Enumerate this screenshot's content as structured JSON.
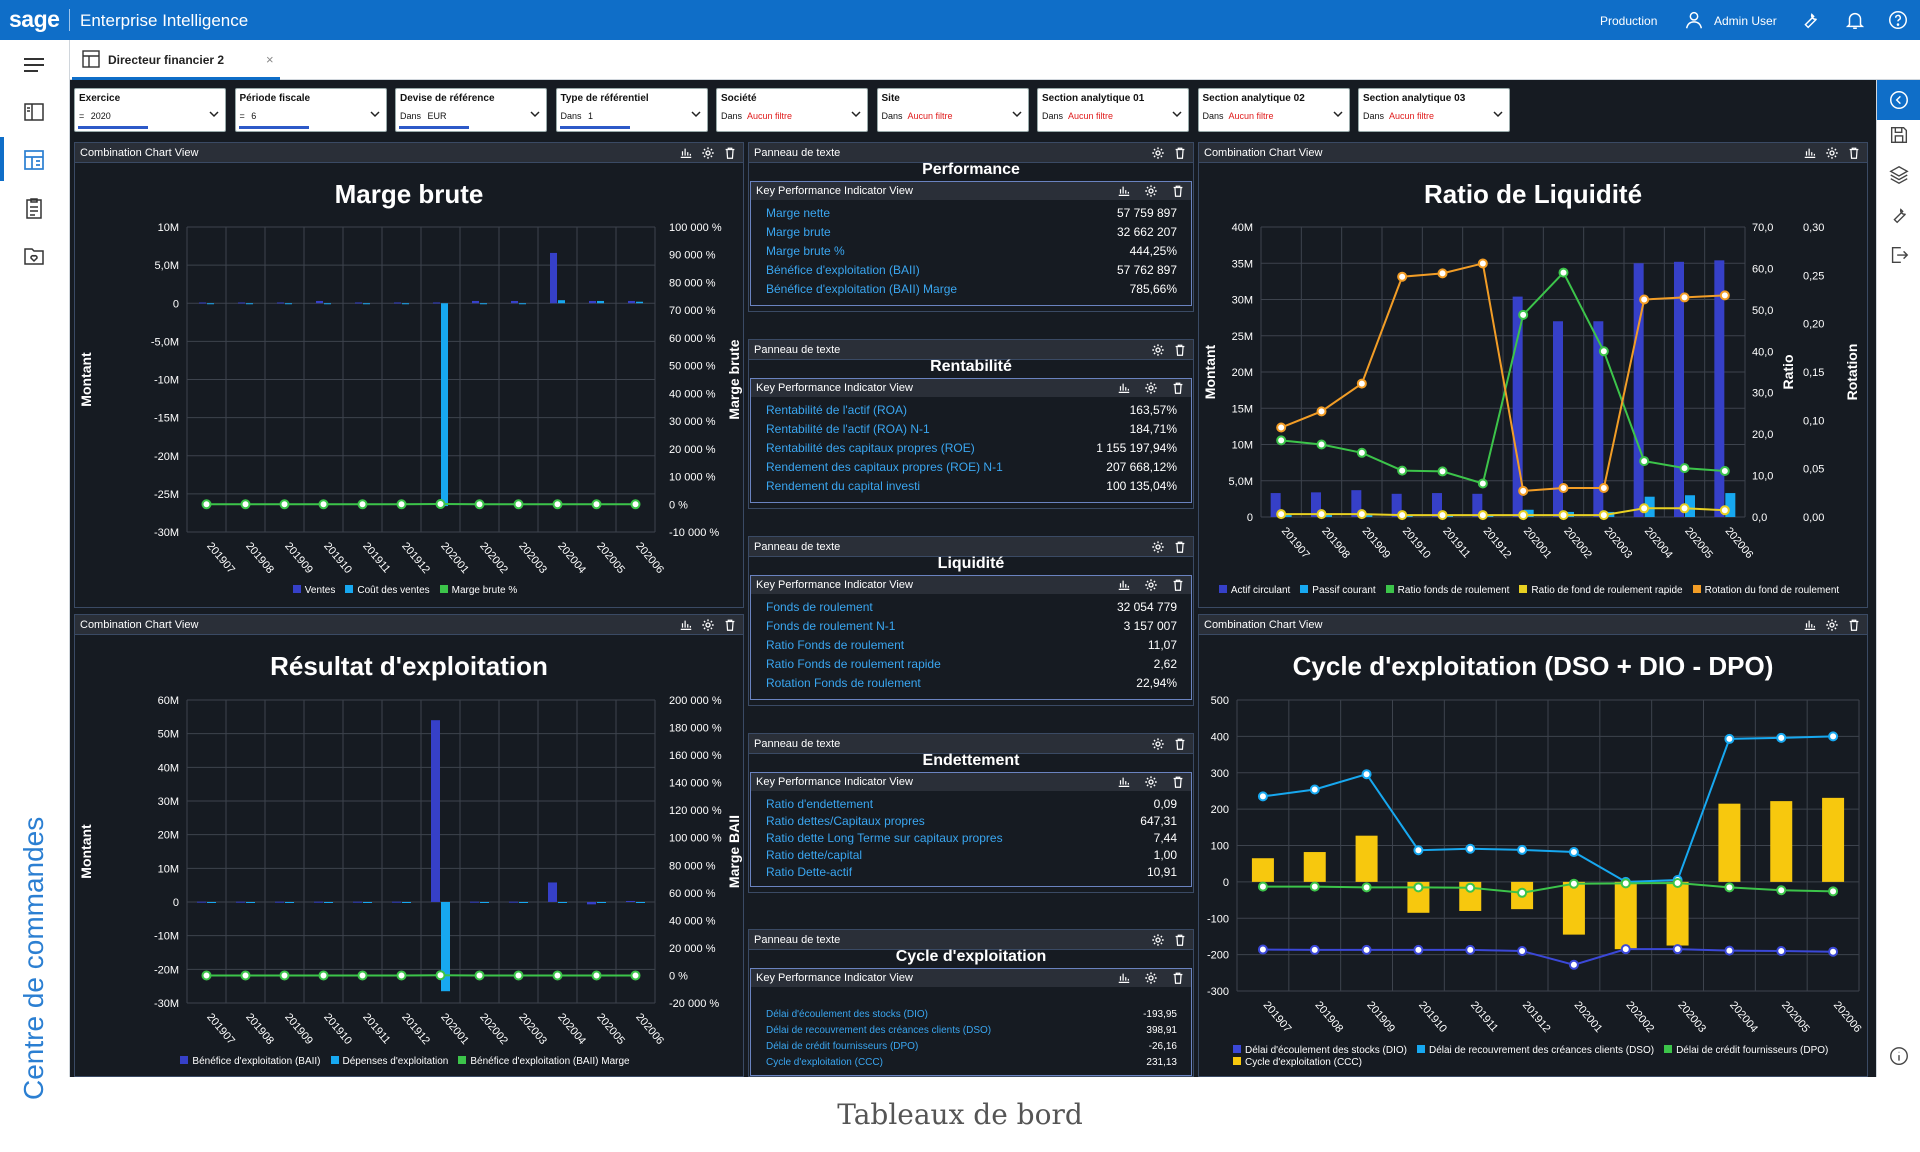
{
  "topbar": {
    "logo": "sage",
    "app_name": "Enterprise Intelligence",
    "environment": "Production",
    "user": "Admin User"
  },
  "tab": {
    "label": "Directeur financier 2",
    "close": "×"
  },
  "side_label": "Centre de commandes",
  "caption": "Tableaux de bord",
  "filters": [
    {
      "label": "Exercice",
      "prefix": "=",
      "value": "2020",
      "filtered": false
    },
    {
      "label": "Période fiscale",
      "prefix": "=",
      "value": "6",
      "filtered": false
    },
    {
      "label": "Devise de référence",
      "prefix": "Dans",
      "value": "EUR",
      "filtered": false
    },
    {
      "label": "Type de référentiel",
      "prefix": "Dans",
      "value": "1",
      "filtered": false
    },
    {
      "label": "Société",
      "prefix": "Dans",
      "value": "Aucun filtre",
      "filtered": true
    },
    {
      "label": "Site",
      "prefix": "Dans",
      "value": "Aucun filtre",
      "filtered": true
    },
    {
      "label": "Section analytique 01",
      "prefix": "Dans",
      "value": "Aucun filtre",
      "filtered": true
    },
    {
      "label": "Section analytique 02",
      "prefix": "Dans",
      "value": "Aucun filtre",
      "filtered": true
    },
    {
      "label": "Section analytique 03",
      "prefix": "Dans",
      "value": "Aucun filtre",
      "filtered": true
    }
  ],
  "panel_titles": {
    "combo": "Combination Chart View",
    "text": "Panneau de texte",
    "kpi": "Key Performance Indicator View"
  },
  "kpi_sections": [
    {
      "title": "Performance",
      "rows": [
        {
          "label": "Marge nette",
          "value": "57 759 897"
        },
        {
          "label": "Marge brute",
          "value": "32 662 207"
        },
        {
          "label": "Marge brute %",
          "value": "444,25%"
        },
        {
          "label": "Bénéfice d'exploitation (BAII)",
          "value": "57 762 897"
        },
        {
          "label": "Bénéfice d'exploitation (BAII) Marge",
          "value": "785,66%"
        }
      ]
    },
    {
      "title": "Rentabilité",
      "rows": [
        {
          "label": "Rentabilité de l'actif (ROA)",
          "value": "163,57%"
        },
        {
          "label": "Rentabilité de l'actif (ROA) N-1",
          "value": "184,71%"
        },
        {
          "label": "Rentabilité des capitaux propres (ROE)",
          "value": "1 155 197,94%"
        },
        {
          "label": "Rendement des capitaux propres (ROE) N-1",
          "value": "207 668,12%"
        },
        {
          "label": "Rendement du capital investi",
          "value": "100 135,04%"
        }
      ]
    },
    {
      "title": "Liquidité",
      "rows": [
        {
          "label": "Fonds de roulement",
          "value": "32 054 779"
        },
        {
          "label": "Fonds de roulement N-1",
          "value": "3 157 007"
        },
        {
          "label": "Ratio Fonds de roulement",
          "value": "11,07"
        },
        {
          "label": "Ratio Fonds de roulement rapide",
          "value": "2,62"
        },
        {
          "label": "Rotation Fonds de roulement",
          "value": "22,94%"
        }
      ]
    },
    {
      "title": "Endettement",
      "rows": [
        {
          "label": "Ratio d'endettement",
          "value": "0,09"
        },
        {
          "label": "Ratio dettes/Capitaux propres",
          "value": "647,31"
        },
        {
          "label": "Ratio dette Long Terme sur capitaux propres",
          "value": "7,44"
        },
        {
          "label": "Ratio dette/capital",
          "value": "1,00"
        },
        {
          "label": "Ratio Dette-actif",
          "value": "10,91"
        }
      ]
    },
    {
      "title": "Cycle d'exploitation",
      "rows": [
        {
          "label": "Délai d'écoulement des stocks (DIO)",
          "value": "-193,95"
        },
        {
          "label": "Délai de recouvrement des créances clients (DSO)",
          "value": "398,91"
        },
        {
          "label": "Délai de crédit fournisseurs (DPO)",
          "value": "-26,16"
        },
        {
          "label": "Cycle d'exploitation (CCC)",
          "value": "231,13"
        }
      ]
    }
  ],
  "chart_data": [
    {
      "type": "bar",
      "title": "Marge brute",
      "ylabel": "Montant",
      "y2label": "Marge brute",
      "categories": [
        "201907",
        "201908",
        "201909",
        "201910",
        "201911",
        "201912",
        "202001",
        "202002",
        "202003",
        "202004",
        "202005",
        "202006"
      ],
      "yticks": [
        "10M",
        "5,0M",
        "0",
        "-5,0M",
        "-10M",
        "-15M",
        "-20M",
        "-25M",
        "-30M"
      ],
      "ylim": [
        -30000000,
        10000000
      ],
      "y2ticks": [
        "100 000 %",
        "90 000 %",
        "80 000 %",
        "70 000 %",
        "60 000 %",
        "50 000 %",
        "40 000 %",
        "30 000 %",
        "20 000 %",
        "10 000 %",
        "0 %",
        "-10 000 %"
      ],
      "y2lim": [
        -10000000,
        100000000
      ],
      "series": [
        {
          "name": "Ventes",
          "kind": "bar",
          "color": "#3640c8",
          "values": [
            100000,
            100000,
            100000,
            300000,
            100000,
            100000,
            100000,
            300000,
            300000,
            6600000,
            300000,
            300000
          ]
        },
        {
          "name": "Coût des ventes",
          "kind": "bar",
          "color": "#17a8f0",
          "values": [
            0,
            0,
            0,
            0,
            0,
            0,
            -26600000,
            0,
            0,
            400000,
            300000,
            200000
          ]
        },
        {
          "name": "Marge brute %",
          "kind": "line",
          "axis": "y2",
          "color": "#3cc44a",
          "values": [
            0,
            0,
            0,
            0,
            0,
            -1000,
            91000,
            -1000,
            -300,
            100,
            2000,
            200
          ]
        }
      ]
    },
    {
      "type": "bar",
      "title": "Résultat d'exploitation",
      "ylabel": "Montant",
      "y2label": "Marge BAII",
      "categories": [
        "201907",
        "201908",
        "201909",
        "201910",
        "201911",
        "201912",
        "202001",
        "202002",
        "202003",
        "202004",
        "202005",
        "202006"
      ],
      "yticks": [
        "60M",
        "50M",
        "40M",
        "30M",
        "20M",
        "10M",
        "0",
        "-10M",
        "-20M",
        "-30M"
      ],
      "ylim": [
        -30000000,
        60000000
      ],
      "y2ticks": [
        "200 000 %",
        "180 000 %",
        "160 000 %",
        "140 000 %",
        "120 000 %",
        "100 000 %",
        "80 000 %",
        "60 000 %",
        "40 000 %",
        "20 000 %",
        "0 %",
        "-20 000 %"
      ],
      "y2lim": [
        -20000000,
        200000000
      ],
      "series": [
        {
          "name": "Bénéfice d'exploitation (BAII)",
          "kind": "bar",
          "color": "#3640c8",
          "values": [
            100000,
            100000,
            100000,
            100000,
            100000,
            100000,
            54000000,
            100000,
            100000,
            5800000,
            -700000,
            300000
          ]
        },
        {
          "name": "Dépenses d'exploitation",
          "kind": "bar",
          "color": "#17a8f0",
          "values": [
            0,
            0,
            0,
            0,
            0,
            0,
            -26500000,
            0,
            0,
            0,
            0,
            0
          ]
        },
        {
          "name": "Bénéfice d'exploitation (BAII) Marge",
          "kind": "line",
          "axis": "y2",
          "color": "#3cc44a",
          "values": [
            0,
            0,
            0,
            0,
            0,
            -2000,
            182000,
            -2000,
            0,
            300,
            2000,
            200
          ]
        }
      ]
    },
    {
      "type": "bar",
      "title": "Ratio de Liquidité",
      "ylabel": "Montant",
      "y2label": "Ratio",
      "y3label": "Rotation",
      "categories": [
        "201907",
        "201908",
        "201909",
        "201910",
        "201911",
        "201912",
        "202001",
        "202002",
        "202003",
        "202004",
        "202005",
        "202006"
      ],
      "yticks": [
        "40M",
        "35M",
        "30M",
        "25M",
        "20M",
        "15M",
        "10M",
        "5,0M",
        "0"
      ],
      "ylim": [
        0,
        40000000
      ],
      "y2ticks": [
        "70,0",
        "60,0",
        "50,0",
        "40,0",
        "30,0",
        "20,0",
        "10,0",
        "0,0"
      ],
      "y2lim": [
        0,
        70
      ],
      "y3ticks": [
        "0,30",
        "0,25",
        "0,20",
        "0,15",
        "0,10",
        "0,05",
        "0,00"
      ],
      "y3lim": [
        0,
        0.3
      ],
      "series": [
        {
          "name": "Actif circulant",
          "kind": "bar",
          "color": "#3640c8",
          "values": [
            3300000,
            3400000,
            3700000,
            3200000,
            3300000,
            3200000,
            30400000,
            27000000,
            27000000,
            35000000,
            35200000,
            35400000
          ]
        },
        {
          "name": "Passif courant",
          "kind": "bar",
          "color": "#17a8f0",
          "values": [
            300000,
            300000,
            300000,
            300000,
            300000,
            300000,
            1000000,
            700000,
            700000,
            2800000,
            3000000,
            3300000
          ]
        },
        {
          "name": "Ratio fonds de roulement",
          "kind": "line",
          "axis": "y2",
          "color": "#3cc44a",
          "values": [
            18.5,
            17.5,
            15.5,
            11.2,
            11.0,
            8.1,
            48.8,
            59.0,
            40.0,
            13.5,
            11.8,
            11.1
          ]
        },
        {
          "name": "Ratio de fond de roulement rapide",
          "kind": "line",
          "axis": "y3",
          "color": "#e8d022",
          "values": [
            0.003,
            0.003,
            0.003,
            0.002,
            0.002,
            0.002,
            0.002,
            0.002,
            0.002,
            0.009,
            0.009,
            0.007
          ]
        },
        {
          "name": "Rotation du fond de roulement",
          "kind": "line",
          "axis": "y2",
          "color": "#f29d26",
          "values": [
            21.6,
            25.5,
            32.2,
            58.0,
            58.8,
            61.2,
            6.3,
            7.0,
            7.0,
            52.5,
            53.0,
            53.5
          ]
        }
      ]
    },
    {
      "type": "bar",
      "title": "Cycle d'exploitation (DSO + DIO - DPO)",
      "ylabel": "",
      "yticks": [
        "500",
        "400",
        "300",
        "200",
        "100",
        "0",
        "-100",
        "-200",
        "-300"
      ],
      "ylim": [
        -300,
        500
      ],
      "categories": [
        "201907",
        "201908",
        "201909",
        "201910",
        "201911",
        "201912",
        "202001",
        "202002",
        "202003",
        "202004",
        "202005",
        "202006"
      ],
      "series": [
        {
          "name": "Délai d'écoulement des stocks (DIO)",
          "kind": "line",
          "color": "#3b48d8",
          "values": [
            -186,
            -187,
            -187,
            -187,
            -187,
            -190,
            -228,
            -185,
            -185,
            -189,
            -190,
            -192
          ]
        },
        {
          "name": "Délai de recouvrement des créances clients (DSO)",
          "kind": "line",
          "color": "#17a8f0",
          "values": [
            235,
            254,
            296,
            87,
            91,
            88,
            82,
            0,
            5,
            393,
            396,
            400
          ]
        },
        {
          "name": "Délai de crédit fournisseurs (DPO)",
          "kind": "line",
          "color": "#3cc44a",
          "values": [
            -13,
            -13,
            -15,
            -15,
            -16,
            -30,
            -5,
            -4,
            -3,
            -15,
            -23,
            -26
          ]
        },
        {
          "name": "Cycle d'exploitation (CCC)",
          "kind": "bar",
          "color": "#f7c80e",
          "values": [
            65,
            82,
            127,
            -85,
            -80,
            -75,
            -145,
            -185,
            -175,
            215,
            222,
            231
          ]
        }
      ]
    }
  ]
}
